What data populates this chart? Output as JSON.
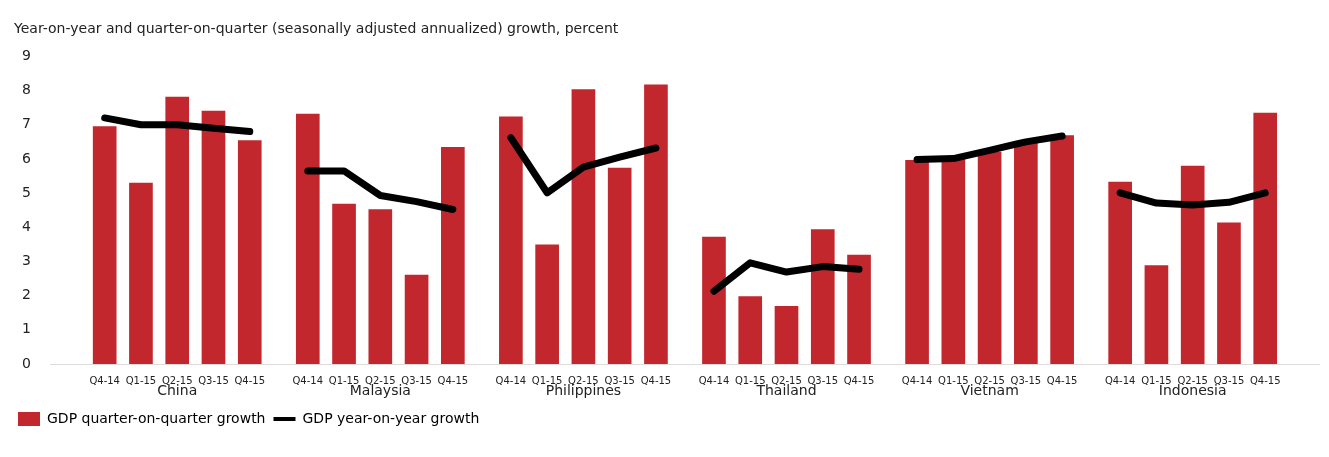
{
  "chart_data": {
    "type": "bar",
    "ylabel": "Year-on-year and quarter-on-quarter (seasonally adjusted annualized) growth, percent",
    "categories": [
      "Q4-14",
      "Q1-15",
      "Q2-15",
      "Q3-15",
      "Q4-15",
      "Q4-14",
      "Q1-15",
      "Q2-15",
      "Q3-15",
      "Q4-15",
      "Q4-14",
      "Q1-15",
      "Q2-15",
      "Q3-15",
      "Q4-15",
      "Q4-14",
      "Q1-15",
      "Q2-15",
      "Q3-15",
      "Q4-15",
      "Q4-14",
      "Q1-15",
      "Q2-15",
      "Q3-15",
      "Q4-15",
      "Q4-14",
      "Q1-15",
      "Q2-15",
      "Q3-15",
      "Q4-15"
    ],
    "annotations": [
      "China",
      "Malaysia",
      "Philippines",
      "Thailand",
      "Vietnam",
      "Indonesia"
    ],
    "series": [
      {
        "name": "GDP quarter-on-quarter growth",
        "color": "#c1272d",
        "values": [
          6.95,
          5.29,
          7.81,
          7.4,
          6.54,
          7.31,
          4.68,
          4.52,
          2.6,
          6.34,
          7.23,
          3.49,
          8.03,
          5.73,
          8.17,
          3.71,
          1.97,
          1.69,
          3.93,
          3.19,
          5.96,
          6.0,
          6.2,
          6.5,
          6.68,
          5.32,
          2.88,
          5.79,
          4.13,
          7.34
        ]
      },
      {
        "name": "GDP year-on-year growth",
        "type": "line",
        "color": "#000000",
        "values": [
          7.2,
          7.0,
          7.0,
          6.9,
          6.8,
          5.65,
          5.65,
          4.93,
          4.75,
          4.52,
          6.62,
          5.01,
          5.76,
          6.05,
          6.32,
          2.13,
          2.96,
          2.69,
          2.85,
          2.77,
          5.98,
          6.01,
          6.25,
          6.5,
          6.67,
          5.01,
          4.71,
          4.65,
          4.73,
          5.01
        ]
      }
    ],
    "ylim": [
      0,
      9
    ],
    "yticks": [
      0,
      1,
      2,
      3,
      4,
      5,
      6,
      7,
      8,
      9
    ],
    "grid": false,
    "legend": "bottom left",
    "line_style": "solid",
    "marker": "none"
  }
}
